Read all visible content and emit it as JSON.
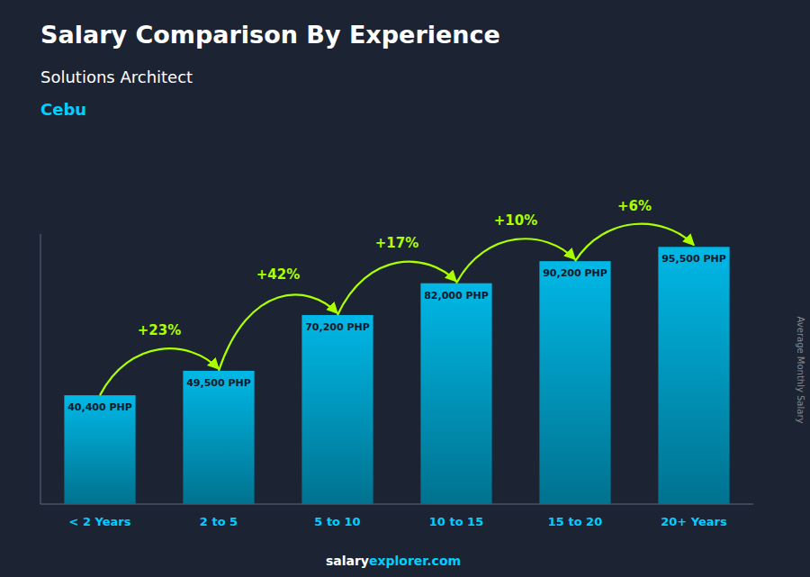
{
  "chart_data": {
    "type": "bar",
    "title": "Salary Comparison By Experience",
    "subtitle": "Solutions Architect",
    "city": "Cebu",
    "ylabel": "Average Monthly Salary",
    "categories": [
      "< 2 Years",
      "2 to 5",
      "5 to 10",
      "10 to 15",
      "15 to 20",
      "20+ Years"
    ],
    "values": [
      40400,
      49500,
      70200,
      82000,
      90200,
      95500
    ],
    "value_labels": [
      "40,400 PHP",
      "49,500 PHP",
      "70,200 PHP",
      "82,000 PHP",
      "90,200 PHP",
      "95,500 PHP"
    ],
    "data_labels": true,
    "color": "#00b8e6",
    "ylim": [
      0,
      100275
    ],
    "tick_labels": "x",
    "annotations": [
      "+23%",
      "+42%",
      "+17%",
      "+10%",
      "+6%"
    ],
    "footer": [
      "salary",
      "explorer.com"
    ]
  }
}
